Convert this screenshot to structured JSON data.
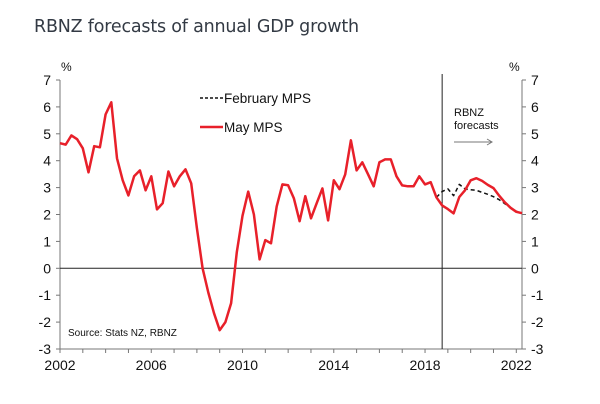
{
  "chart_data": {
    "type": "line",
    "title": "RBNZ forecasts of annual GDP growth",
    "xlabel": "",
    "ylabel": "%",
    "ylabel_right": "%",
    "ylim": [
      -3,
      7
    ],
    "xlim": [
      2002,
      2022.25
    ],
    "y_ticks": [
      7,
      6,
      5,
      4,
      3,
      2,
      1,
      0,
      -1,
      -2,
      -3
    ],
    "y_tick_labels": [
      "7",
      "6",
      "5",
      "4",
      "3",
      "2",
      "1",
      "0",
      "-1",
      "-2",
      "-3"
    ],
    "x_ticks": [
      2002,
      2006,
      2010,
      2014,
      2018,
      2022
    ],
    "x_tick_labels": [
      "2002",
      "2006",
      "2010",
      "2014",
      "2018",
      "2022"
    ],
    "x_minor_tick_step_years": 1,
    "grid": false,
    "zero_line": true,
    "forecast_divider_year": 2018.75,
    "annotation": {
      "line1": "RBNZ",
      "line2": "forecasts",
      "arrow": "right-arrow"
    },
    "source": "Source: Stats NZ, RBNZ",
    "legend": {
      "placement": "top-center",
      "entries": [
        {
          "label": "February MPS",
          "style": "dashed",
          "color": "#111111"
        },
        {
          "label": "May MPS",
          "style": "solid",
          "color": "#e8202a"
        }
      ]
    },
    "x_start": 2002,
    "x_step": 0.25,
    "series": [
      {
        "name": "May MPS",
        "color": "#e8202a",
        "start_year": 2002,
        "values": [
          4.65,
          4.6,
          4.94,
          4.8,
          4.46,
          3.57,
          4.54,
          4.5,
          5.72,
          6.17,
          4.09,
          3.27,
          2.71,
          3.42,
          3.64,
          2.9,
          3.42,
          2.19,
          2.42,
          3.6,
          3.05,
          3.42,
          3.68,
          3.16,
          1.49,
          0.0,
          -0.9,
          -1.67,
          -2.3,
          -2.0,
          -1.3,
          0.6,
          1.95,
          2.85,
          2.0,
          0.33,
          1.05,
          0.93,
          2.3,
          3.12,
          3.09,
          2.6,
          1.75,
          2.68,
          1.86,
          2.42,
          2.97,
          1.78,
          3.27,
          2.94,
          3.49,
          4.76,
          3.64,
          3.94,
          3.5,
          3.05,
          3.94,
          4.05,
          4.05,
          3.42,
          3.08,
          3.05,
          3.05,
          3.42,
          3.12,
          3.2,
          2.64,
          2.34,
          2.2,
          2.04,
          2.65,
          2.9,
          3.27,
          3.35,
          3.25,
          3.1,
          2.98,
          2.7,
          2.45,
          2.25,
          2.1,
          2.05
        ]
      },
      {
        "name": "February MPS",
        "color": "#111111",
        "start_year": 2018.5,
        "values": [
          2.64,
          2.85,
          2.95,
          2.7,
          3.12,
          2.95,
          2.92,
          2.9,
          2.82,
          2.75,
          2.66,
          2.55,
          2.4,
          2.25,
          2.12,
          2.05
        ]
      }
    ]
  }
}
